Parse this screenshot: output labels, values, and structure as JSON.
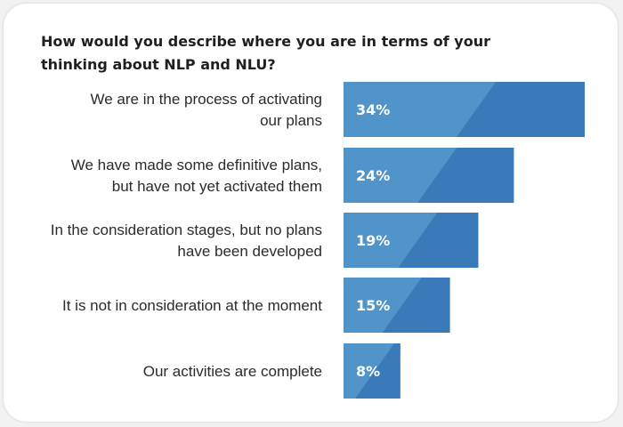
{
  "chart_data": {
    "type": "bar",
    "orientation": "horizontal",
    "title": "How would you describe where you are in terms of your thinking about NLP and NLU?",
    "categories": [
      [
        "We are in the process of activating",
        "our plans"
      ],
      [
        "We have made some definitive plans,",
        "but have not yet activated them"
      ],
      [
        "In the consideration stages, but no plans",
        "have been developed"
      ],
      [
        "It is not in consideration at the moment"
      ],
      [
        "Our activities are complete"
      ]
    ],
    "values": [
      34,
      24,
      19,
      15,
      8
    ],
    "value_labels": [
      "34%",
      "24%",
      "19%",
      "15%",
      "8%"
    ],
    "unit": "%",
    "xlim": [
      0,
      34
    ],
    "grid": false,
    "legend": "none",
    "colors": {
      "bar_light": "#5194c9",
      "bar_dark": "#3a7ab8",
      "title": "#1f1f1f",
      "label": "#2b2b2b"
    }
  }
}
